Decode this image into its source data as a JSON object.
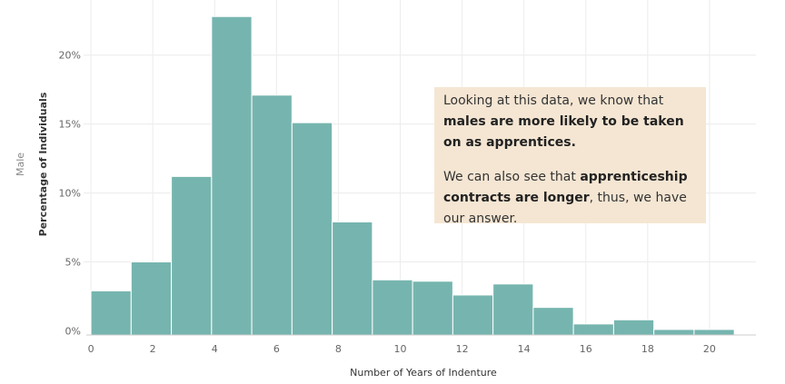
{
  "chart_data": {
    "type": "bar",
    "row_label": "Male",
    "xlabel": "Number of Years of Indenture",
    "ylabel": "Percentage of Individuals",
    "xlim": [
      -2,
      21.5
    ],
    "ylim": [
      -0.3,
      24
    ],
    "bin_width": 1.3,
    "x_ticks": [
      0,
      2,
      4,
      6,
      8,
      10,
      12,
      14,
      16,
      18,
      20
    ],
    "y_ticks": [
      {
        "value": 0,
        "label": "0%"
      },
      {
        "value": 5,
        "label": "5%"
      },
      {
        "value": 10,
        "label": "10%"
      },
      {
        "value": 15,
        "label": "15%"
      },
      {
        "value": 20,
        "label": "20%"
      }
    ],
    "bars": [
      {
        "x0": 0.0,
        "value": 2.9
      },
      {
        "x0": 1.3,
        "value": 5.0
      },
      {
        "x0": 2.6,
        "value": 11.2
      },
      {
        "x0": 3.9,
        "value": 22.8
      },
      {
        "x0": 5.2,
        "value": 17.1
      },
      {
        "x0": 6.5,
        "value": 15.1
      },
      {
        "x0": 7.8,
        "value": 7.9
      },
      {
        "x0": 9.1,
        "value": 3.7
      },
      {
        "x0": 10.4,
        "value": 3.6
      },
      {
        "x0": 11.7,
        "value": 2.6
      },
      {
        "x0": 13.0,
        "value": 3.4
      },
      {
        "x0": 14.3,
        "value": 1.7
      },
      {
        "x0": 15.6,
        "value": 0.5
      },
      {
        "x0": 16.9,
        "value": 0.8
      },
      {
        "x0": 18.2,
        "value": 0.1
      },
      {
        "x0": 19.5,
        "value": 0.1
      }
    ],
    "colors": {
      "bar": "#76b5af",
      "bar_edge": "#ffffff",
      "grid": "#ececec",
      "axis": "#cccccc",
      "annotation_bg": "#f5e6d3"
    },
    "grid": true
  },
  "annotation": {
    "p1_a": "Looking at this data, we know that ",
    "p1_b": "males are more likely to be taken on as apprentices.",
    "p2_a": "We can also see that ",
    "p2_b": "apprenticeship contracts are longer",
    "p2_c": ", thus, we have our answer."
  }
}
